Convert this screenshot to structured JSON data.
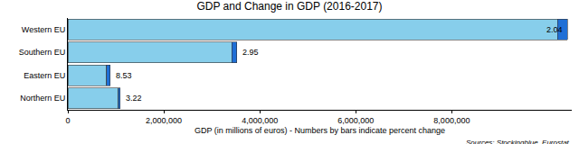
{
  "chart_data": {
    "type": "bar",
    "orientation": "horizontal",
    "stacked": true,
    "title": "GDP and Change in GDP (2016-2017)",
    "xlabel": "GDP (in millions of euros) - Numbers by bars indicate percent change",
    "categories": [
      "Western EU",
      "Southern EU",
      "Eastern EU",
      "Northern EU"
    ],
    "series": [
      {
        "color": "#87ceeb",
        "values": [
          10200000,
          3420000,
          810000,
          1050000
        ]
      },
      {
        "color": "#1f6fd6",
        "values": [
          208000,
          101000,
          69000,
          34000
        ]
      }
    ],
    "percent_change": [
      2.04,
      2.95,
      8.53,
      3.22
    ],
    "xlim": [
      0,
      10500000
    ],
    "xticks": [
      0,
      {
        "value": 2000000,
        "label": "2,000,000"
      },
      {
        "value": 4000000,
        "label": "4,000,000"
      },
      {
        "value": 6000000,
        "label": "6,000,000"
      },
      {
        "value": 8000000,
        "label": "8,000,000"
      }
    ],
    "grid": false,
    "annotations": [
      {
        "text": "Sources: Stockingblue, Eurostat"
      }
    ]
  }
}
